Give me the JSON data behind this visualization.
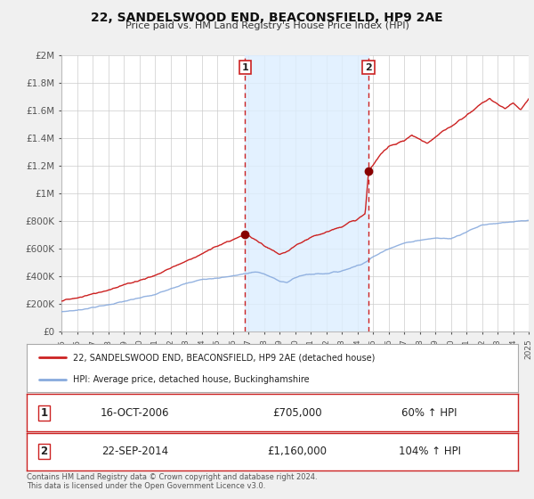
{
  "title": "22, SANDELSWOOD END, BEACONSFIELD, HP9 2AE",
  "subtitle": "Price paid vs. HM Land Registry's House Price Index (HPI)",
  "legend_line1": "22, SANDELSWOOD END, BEACONSFIELD, HP9 2AE (detached house)",
  "legend_line2": "HPI: Average price, detached house, Buckinghamshire",
  "footnote": "Contains HM Land Registry data © Crown copyright and database right 2024.\nThis data is licensed under the Open Government Licence v3.0.",
  "sale1_date": "16-OCT-2006",
  "sale1_price": "£705,000",
  "sale1_hpi": "60% ↑ HPI",
  "sale2_date": "22-SEP-2014",
  "sale2_price": "£1,160,000",
  "sale2_hpi": "104% ↑ HPI",
  "vline1_x": 2006.79,
  "vline2_x": 2014.72,
  "dot1_x": 2006.79,
  "dot1_y": 705000,
  "dot2_x": 2014.72,
  "dot2_y": 1160000,
  "price_line_color": "#cc2222",
  "hpi_line_color": "#88aadd",
  "vline_color": "#cc2222",
  "dot_color": "#880000",
  "shade_color": "#ddeeff",
  "background_color": "#f0f0f0",
  "plot_bg_color": "#ffffff",
  "grid_color": "#cccccc",
  "ylim": [
    0,
    2000000
  ],
  "xlim": [
    1995,
    2025
  ],
  "yticks": [
    0,
    200000,
    400000,
    600000,
    800000,
    1000000,
    1200000,
    1400000,
    1600000,
    1800000,
    2000000
  ],
  "ytick_labels": [
    "£0",
    "£200K",
    "£400K",
    "£600K",
    "£800K",
    "£1M",
    "£1.2M",
    "£1.4M",
    "£1.6M",
    "£1.8M",
    "£2M"
  ],
  "xticks": [
    1995,
    1996,
    1997,
    1998,
    1999,
    2000,
    2001,
    2002,
    2003,
    2004,
    2005,
    2006,
    2007,
    2008,
    2009,
    2010,
    2011,
    2012,
    2013,
    2014,
    2015,
    2016,
    2017,
    2018,
    2019,
    2020,
    2021,
    2022,
    2023,
    2024,
    2025
  ]
}
